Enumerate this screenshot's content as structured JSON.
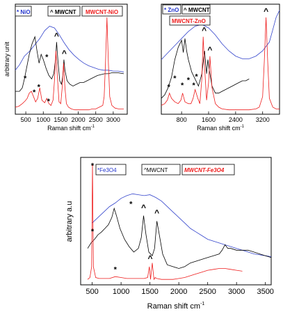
{
  "chart_data": [
    {
      "type": "line",
      "panel": "a",
      "xlabel": "Raman shift cm",
      "xlabel_sup": "-1",
      "ylabel": "arbitrary unit",
      "xlim": [
        200,
        3400
      ],
      "xticks": [
        500,
        1000,
        1500,
        2000,
        2500,
        3000
      ],
      "tick_labels": [
        "500",
        "1000",
        "1500",
        "2000",
        "2500",
        "3000"
      ],
      "legend": [
        {
          "label": "* NiO",
          "color": "#2233cc"
        },
        {
          "label": "^ MWCNT",
          "color": "#000000"
        },
        {
          "label": "MWCNT-NiO",
          "color": "#ee1c1c"
        }
      ],
      "series": [
        {
          "color": "#3344cc",
          "x": [
            200,
            320,
            460,
            620,
            760,
            900,
            1040,
            1180,
            1320,
            1460,
            1600,
            1740,
            1880,
            2020,
            2160,
            2300,
            2440,
            2580,
            2720,
            2860,
            3000,
            3140,
            3300
          ],
          "y": [
            0.5,
            0.56,
            0.66,
            0.72,
            0.79,
            0.86,
            0.95,
            1.0,
            0.98,
            0.9,
            0.81,
            0.73,
            0.67,
            0.62,
            0.58,
            0.55,
            0.53,
            0.51,
            0.5,
            0.5,
            0.49,
            0.49,
            0.48
          ]
        },
        {
          "color": "#000000",
          "x": [
            200,
            320,
            400,
            460,
            520,
            600,
            680,
            760,
            820,
            880,
            940,
            1000,
            1080,
            1160,
            1240,
            1300,
            1350,
            1380,
            1420,
            1470,
            1520,
            1560,
            1590,
            1620,
            1680,
            1760,
            1850,
            1950,
            2050,
            2150,
            2250,
            2350,
            2450,
            2550,
            2650,
            2750,
            2850,
            2950,
            3050,
            3150,
            3300
          ],
          "y": [
            0.26,
            0.26,
            0.3,
            0.4,
            0.52,
            0.68,
            0.8,
            0.88,
            0.72,
            0.58,
            0.68,
            0.62,
            0.52,
            0.44,
            0.4,
            0.46,
            0.62,
            0.82,
            0.6,
            0.38,
            0.34,
            0.44,
            0.62,
            0.5,
            0.38,
            0.34,
            0.32,
            0.34,
            0.36,
            0.36,
            0.38,
            0.4,
            0.42,
            0.44,
            0.45,
            0.46,
            0.46,
            0.47,
            0.47,
            0.47,
            0.46
          ]
        },
        {
          "color": "#ee1c1c",
          "x": [
            200,
            300,
            400,
            480,
            540,
            600,
            660,
            720,
            780,
            840,
            900,
            960,
            1040,
            1100,
            1160,
            1220,
            1280,
            1320,
            1360,
            1400,
            1450,
            1500,
            1540,
            1580,
            1620,
            1660,
            1720,
            1800,
            1900,
            2000,
            2100,
            2200,
            2300,
            2400,
            2500,
            2600,
            2700,
            2740,
            2780,
            2820,
            2860,
            2900,
            2960,
            3050,
            3150,
            3300
          ],
          "y": [
            0.08,
            0.09,
            0.12,
            0.15,
            0.18,
            0.24,
            0.26,
            0.2,
            0.14,
            0.18,
            0.3,
            0.16,
            0.13,
            0.18,
            0.12,
            0.1,
            0.16,
            0.38,
            0.72,
            0.44,
            0.14,
            0.12,
            0.3,
            0.58,
            0.3,
            0.12,
            0.08,
            0.06,
            0.05,
            0.05,
            0.05,
            0.05,
            0.05,
            0.06,
            0.06,
            0.08,
            0.1,
            0.2,
            0.6,
            1.1,
            0.6,
            0.2,
            0.1,
            0.07,
            0.06,
            0.06
          ]
        }
      ],
      "annotations": [
        {
          "text": "*",
          "x": 480,
          "y": 0.38
        },
        {
          "text": "*",
          "x": 740,
          "y": 0.22
        },
        {
          "text": "*",
          "x": 870,
          "y": 0.28
        },
        {
          "text": "*",
          "x": 1150,
          "y": 0.12
        },
        {
          "text": "*",
          "x": 1100,
          "y": 0.62
        },
        {
          "text": "^",
          "x": 1380,
          "y": 0.86
        },
        {
          "text": "^",
          "x": 1600,
          "y": 0.66
        },
        {
          "text": "^",
          "x": 2830,
          "y": 1.14
        }
      ]
    },
    {
      "type": "line",
      "panel": "b",
      "xlabel": "Raman shift cm",
      "xlabel_sup": "-1",
      "ylabel": "",
      "xlim": [
        200,
        3700
      ],
      "xticks": [
        800,
        1600,
        2400,
        3200
      ],
      "tick_labels": [
        "800",
        "1600",
        "2400",
        "3200"
      ],
      "legend": [
        {
          "label": "* ZnO",
          "color": "#2233cc"
        },
        {
          "label": "^ MWCNT",
          "color": "#000000"
        },
        {
          "label": "MWCNT-ZnO",
          "color": "#ee1c1c"
        }
      ],
      "series": [
        {
          "color": "#3344cc",
          "x": [
            200,
            400,
            600,
            800,
            1000,
            1200,
            1400,
            1600,
            1800,
            2000,
            2200,
            2400,
            2600,
            2800,
            3000,
            3200,
            3400,
            3500,
            3600,
            3700
          ],
          "y": [
            0.62,
            0.7,
            0.78,
            0.86,
            0.94,
            1.0,
            1.02,
            0.98,
            0.9,
            0.8,
            0.72,
            0.66,
            0.63,
            0.63,
            0.66,
            0.72,
            0.82,
            0.96,
            1.1,
            1.18
          ]
        },
        {
          "color": "#000000",
          "x": [
            200,
            300,
            400,
            500,
            600,
            700,
            800,
            850,
            900,
            950,
            1000,
            1100,
            1200,
            1300,
            1400,
            1480,
            1540,
            1580,
            1620,
            1700,
            1800,
            1900,
            2000,
            2100,
            2200,
            2300,
            2400,
            2500,
            2600,
            2700,
            2800
          ],
          "y": [
            0.18,
            0.22,
            0.3,
            0.42,
            0.62,
            0.76,
            0.84,
            0.7,
            0.86,
            0.72,
            0.62,
            0.48,
            0.4,
            0.32,
            0.46,
            0.72,
            0.46,
            0.62,
            0.5,
            0.32,
            0.24,
            0.24,
            0.26,
            0.28,
            0.3,
            0.32,
            0.34,
            0.36,
            0.38,
            0.38,
            0.4
          ]
        },
        {
          "color": "#ee1c1c",
          "x": [
            200,
            300,
            380,
            440,
            500,
            600,
            700,
            780,
            830,
            900,
            1000,
            1080,
            1140,
            1200,
            1280,
            1340,
            1400,
            1440,
            1480,
            1540,
            1600,
            1640,
            1700,
            1800,
            1900,
            2000,
            2200,
            2400,
            2600,
            2800,
            3000,
            3100,
            3200,
            3250,
            3300,
            3350,
            3400,
            3500,
            3600,
            3700
          ],
          "y": [
            0.1,
            0.12,
            0.16,
            0.24,
            0.18,
            0.14,
            0.12,
            0.16,
            0.24,
            0.14,
            0.12,
            0.12,
            0.18,
            0.28,
            0.18,
            0.12,
            0.4,
            0.88,
            0.54,
            0.16,
            0.36,
            0.66,
            0.3,
            0.12,
            0.08,
            0.06,
            0.05,
            0.05,
            0.05,
            0.05,
            0.06,
            0.08,
            0.2,
            0.6,
            1.1,
            0.6,
            0.18,
            0.08,
            0.06,
            0.06
          ]
        }
      ],
      "annotations": [
        {
          "text": "*",
          "x": 420,
          "y": 0.28
        },
        {
          "text": "*",
          "x": 600,
          "y": 0.38
        },
        {
          "text": "*",
          "x": 820,
          "y": 0.3
        },
        {
          "text": "*",
          "x": 1000,
          "y": 0.36
        },
        {
          "text": "*",
          "x": 1160,
          "y": 0.3
        },
        {
          "text": "*",
          "x": 1240,
          "y": 0.4
        },
        {
          "text": "^",
          "x": 1470,
          "y": 0.92
        },
        {
          "text": "^",
          "x": 1640,
          "y": 0.7
        },
        {
          "text": "^",
          "x": 3300,
          "y": 1.14
        }
      ]
    },
    {
      "type": "line",
      "panel": "c",
      "xlabel": "Raman shift cm",
      "xlabel_sup": "-1",
      "ylabel": "arbitrary a.u",
      "xlim": [
        300,
        3600
      ],
      "xticks": [
        500,
        1000,
        1500,
        2000,
        2500,
        3000,
        3500
      ],
      "tick_labels": [
        "500",
        "1000",
        "1500",
        "2000",
        "2500",
        "3000",
        "3500"
      ],
      "legend": [
        {
          "label": "*Fe3O4",
          "color": "#2233cc"
        },
        {
          "label": "^MWCNT",
          "color": "#000000"
        },
        {
          "label": "MWCNT-Fe3O4",
          "color": "#ee1c1c"
        }
      ],
      "series": [
        {
          "color": "#3344cc",
          "x": [
            500,
            600,
            700,
            800,
            900,
            1000,
            1100,
            1200,
            1300,
            1400,
            1500,
            1600,
            1700,
            1800,
            1900,
            2000,
            2100,
            2200,
            2300,
            2400,
            2500,
            2600,
            2700,
            2800,
            2900,
            3000,
            3100,
            3200,
            3300,
            3400,
            3500,
            3600
          ],
          "y": [
            0.68,
            0.74,
            0.8,
            0.86,
            0.9,
            0.95,
            0.98,
            1.0,
            0.99,
            0.98,
            0.99,
            0.96,
            0.92,
            0.86,
            0.8,
            0.74,
            0.68,
            0.62,
            0.58,
            0.54,
            0.5,
            0.48,
            0.46,
            0.44,
            0.42,
            0.4,
            0.38,
            0.36,
            0.34,
            0.33,
            0.32,
            0.31
          ]
        },
        {
          "color": "#000000",
          "x": [
            420,
            480,
            540,
            600,
            660,
            720,
            780,
            840,
            880,
            920,
            980,
            1060,
            1140,
            1220,
            1300,
            1350,
            1390,
            1430,
            1480,
            1540,
            1580,
            1620,
            1660,
            1720,
            1800,
            1900,
            2000,
            2100,
            2200,
            2300,
            2400,
            2500,
            2600,
            2700,
            2750,
            2800,
            2850,
            2900,
            3000,
            3100,
            3200,
            3300,
            3400,
            3500,
            3600
          ],
          "y": [
            0.4,
            0.46,
            0.5,
            0.55,
            0.58,
            0.62,
            0.66,
            0.74,
            0.84,
            0.76,
            0.62,
            0.5,
            0.42,
            0.36,
            0.4,
            0.52,
            0.76,
            0.56,
            0.36,
            0.32,
            0.4,
            0.7,
            0.56,
            0.34,
            0.22,
            0.2,
            0.18,
            0.2,
            0.24,
            0.26,
            0.28,
            0.3,
            0.32,
            0.34,
            0.38,
            0.44,
            0.4,
            0.4,
            0.38,
            0.38,
            0.38,
            0.36,
            0.34,
            0.32,
            0.3
          ]
        },
        {
          "color": "#ee1c1c",
          "x": [
            420,
            460,
            490,
            505,
            520,
            560,
            620,
            700,
            800,
            900,
            1000,
            1100,
            1200,
            1300,
            1400,
            1460,
            1490,
            1510,
            1540,
            1570,
            1590,
            1620,
            1700,
            1800,
            1900,
            2000,
            2100,
            2200,
            2300,
            2400,
            2500,
            2600,
            2700,
            2800,
            2900,
            3000,
            3100
          ],
          "y": [
            0.06,
            0.08,
            0.2,
            1.34,
            0.2,
            0.08,
            0.07,
            0.07,
            0.07,
            0.09,
            0.08,
            0.07,
            0.07,
            0.07,
            0.07,
            0.08,
            0.2,
            0.06,
            0.24,
            0.06,
            0.08,
            0.07,
            0.06,
            0.06,
            0.06,
            0.07,
            0.08,
            0.1,
            0.12,
            0.14,
            0.16,
            0.17,
            0.18,
            0.18,
            0.17,
            0.16,
            0.15
          ]
        }
      ],
      "annotations": [
        {
          "text": "*",
          "x": 505,
          "y": 1.28
        },
        {
          "text": "*",
          "x": 1170,
          "y": 0.86
        },
        {
          "text": "*",
          "x": 505,
          "y": 0.56
        },
        {
          "text": "*",
          "x": 900,
          "y": 0.14
        },
        {
          "text": "^",
          "x": 1390,
          "y": 0.82
        },
        {
          "text": "^",
          "x": 1620,
          "y": 0.76
        },
        {
          "text": "^",
          "x": 1505,
          "y": 0.26
        }
      ]
    }
  ]
}
